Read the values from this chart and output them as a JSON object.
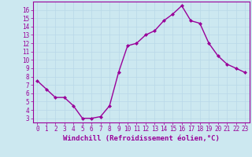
{
  "x": [
    0,
    1,
    2,
    3,
    4,
    5,
    6,
    7,
    8,
    9,
    10,
    11,
    12,
    13,
    14,
    15,
    16,
    17,
    18,
    19,
    20,
    21,
    22,
    23
  ],
  "y": [
    7.5,
    6.5,
    5.5,
    5.5,
    4.5,
    3.0,
    3.0,
    3.2,
    4.5,
    8.5,
    11.7,
    12.0,
    13.0,
    13.5,
    14.7,
    15.5,
    16.5,
    14.7,
    14.4,
    12.0,
    10.5,
    9.5,
    9.0,
    8.5
  ],
  "line_color": "#990099",
  "marker": "D",
  "marker_size": 2,
  "line_width": 1.0,
  "bg_color": "#cce8f0",
  "grid_color": "#aaccdd",
  "tick_color": "#990099",
  "label_color": "#990099",
  "xlabel": "Windchill (Refroidissement éolien,°C)",
  "xlim": [
    -0.5,
    23.5
  ],
  "ylim": [
    2.5,
    17.0
  ],
  "yticks": [
    3,
    4,
    5,
    6,
    7,
    8,
    9,
    10,
    11,
    12,
    13,
    14,
    15,
    16
  ],
  "xticks": [
    0,
    1,
    2,
    3,
    4,
    5,
    6,
    7,
    8,
    9,
    10,
    11,
    12,
    13,
    14,
    15,
    16,
    17,
    18,
    19,
    20,
    21,
    22,
    23
  ],
  "axis_fontsize": 6.5,
  "tick_fontsize": 5.5
}
